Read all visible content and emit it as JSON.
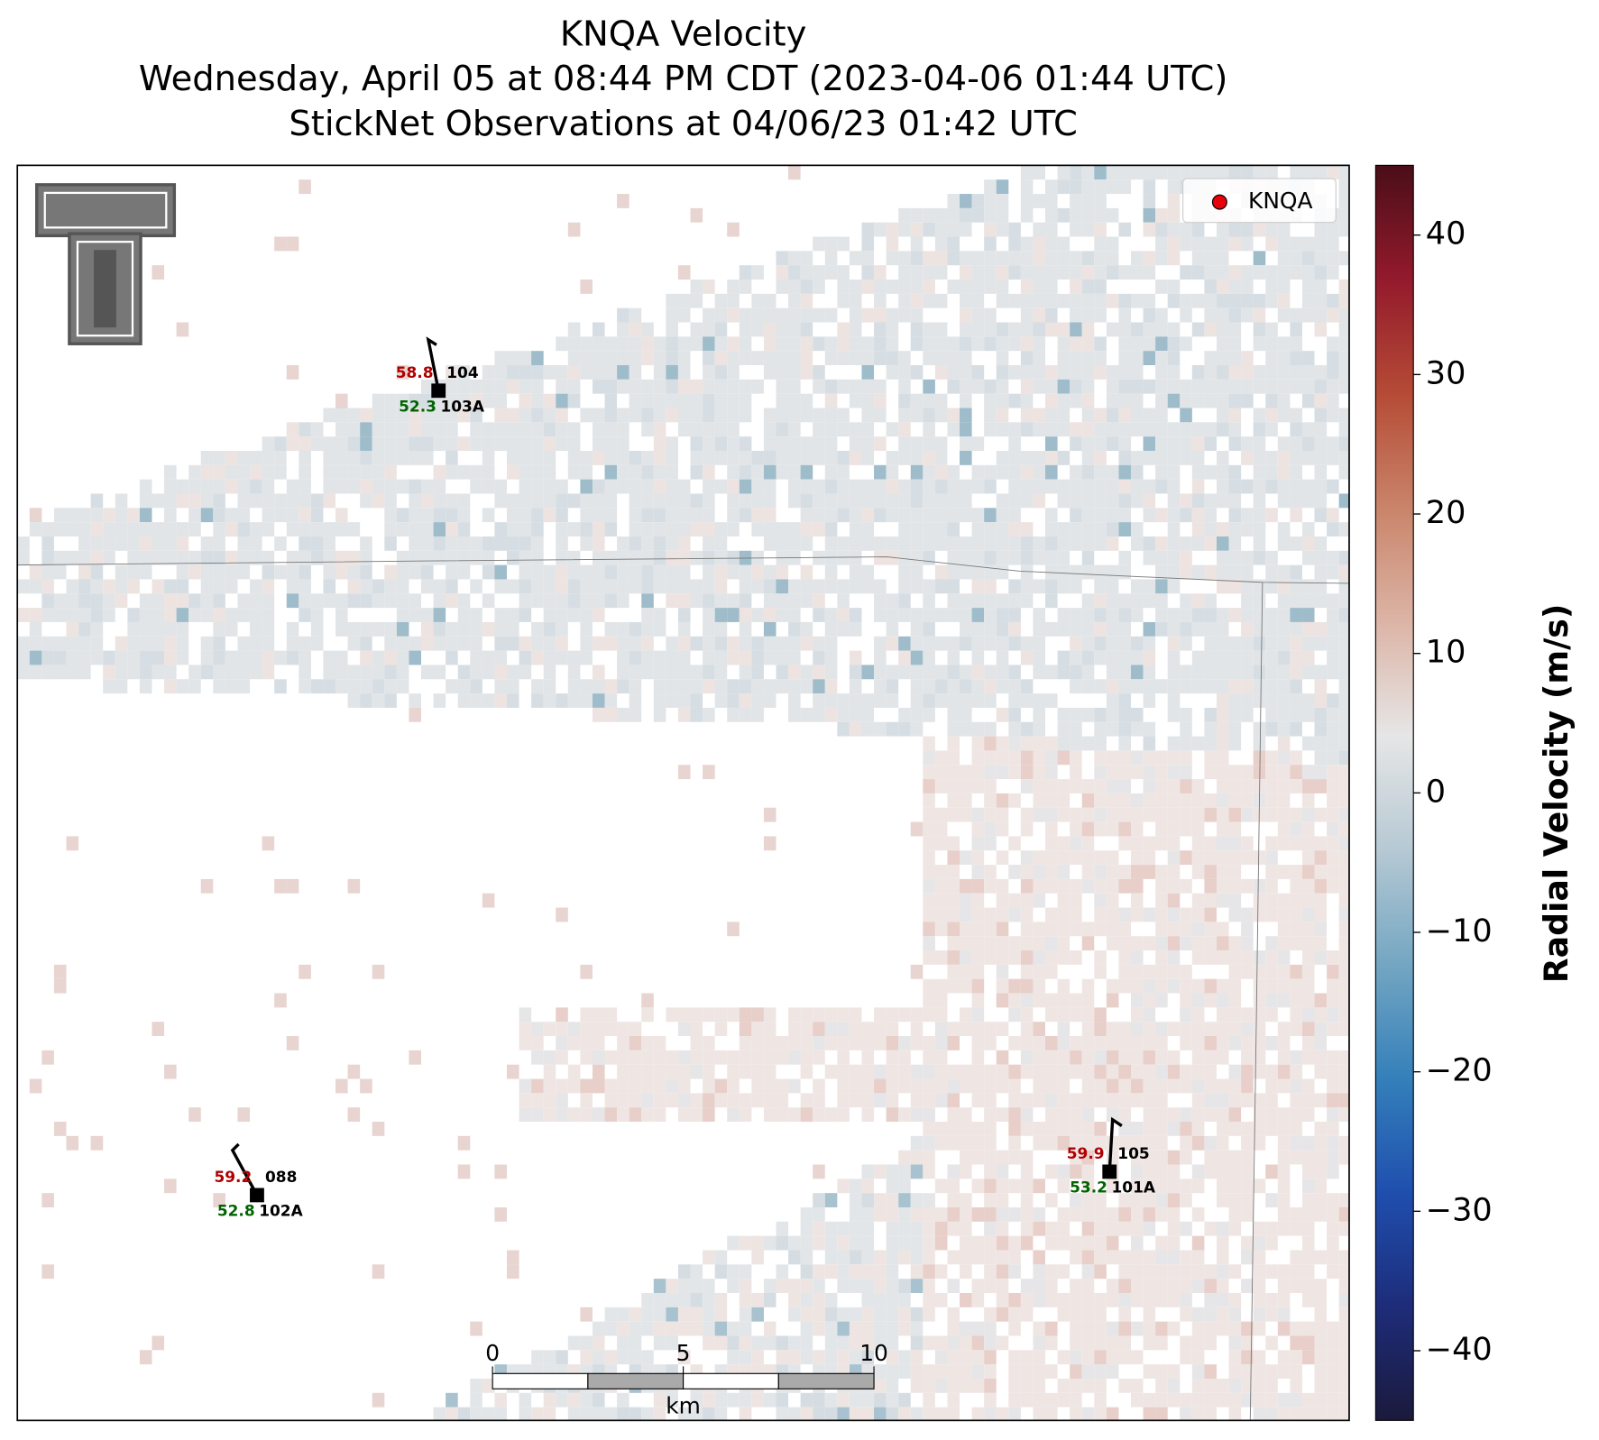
{
  "title_lines": [
    "KNQA Velocity",
    "Wednesday, April 05 at 08:44 PM CDT (2023-04-06 01:44 UTC)",
    "StickNet Observations at 04/06/23 01:42 UTC"
  ],
  "legend": {
    "label": "KNQA",
    "color": "#e8000b"
  },
  "colorbar": {
    "label": "Radial Velocity (m/s)",
    "lim": [
      -45,
      45
    ],
    "ticks": [
      {
        "value": -40,
        "label": "−40"
      },
      {
        "value": -30,
        "label": "−30"
      },
      {
        "value": -20,
        "label": "−20"
      },
      {
        "value": -10,
        "label": "−10"
      },
      0,
      10,
      20,
      30,
      40
    ],
    "colors": [
      "#1b1a3c",
      "#1e2c7a",
      "#1f4fae",
      "#3480ba",
      "#74a6c2",
      "#b6c9d4",
      "#e6e6e6",
      "#dcb4a6",
      "#c9846a",
      "#b54b36",
      "#931a2c",
      "#4a0e18"
    ]
  },
  "stations": [
    {
      "temp": 58.8,
      "upper_id": "104",
      "dew": 52.3,
      "lower_id": "103A"
    },
    {
      "temp": 59.2,
      "upper_id": "088",
      "dew": 52.8,
      "lower_id": "102A"
    },
    {
      "temp": 59.9,
      "upper_id": "105",
      "dew": 53.2,
      "lower_id": "101A"
    }
  ],
  "scale_bar": {
    "xlim": [
      0,
      10
    ],
    "xticks": [
      0,
      5,
      10
    ],
    "unit": "km"
  }
}
